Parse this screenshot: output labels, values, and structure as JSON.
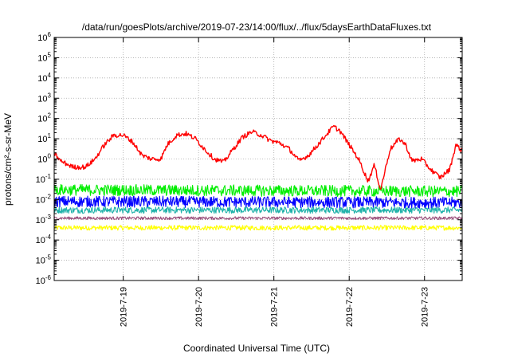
{
  "chart_data": {
    "type": "line",
    "title": "/data/run/goesPlots/archive/2019-07-23/14:00/flux/../flux/5daysEarthDataFluxes.txt",
    "xlabel": "Coordinated Universal Time (UTC)",
    "ylabel": "protons/cm²-s-sr-MeV",
    "yscale": "log",
    "ylim": [
      1e-06,
      1000000.0
    ],
    "y_tick_labels": [
      {
        "base": "10",
        "exp": "-6"
      },
      {
        "base": "10",
        "exp": "-5"
      },
      {
        "base": "10",
        "exp": "-4"
      },
      {
        "base": "10",
        "exp": "-3"
      },
      {
        "base": "10",
        "exp": "-2"
      },
      {
        "base": "10",
        "exp": "-1"
      },
      {
        "base": "10",
        "exp": "0"
      },
      {
        "base": "10",
        "exp": "1"
      },
      {
        "base": "10",
        "exp": "2"
      },
      {
        "base": "10",
        "exp": "3"
      },
      {
        "base": "10",
        "exp": "4"
      },
      {
        "base": "10",
        "exp": "5"
      },
      {
        "base": "10",
        "exp": "6"
      }
    ],
    "xlim": [
      "2019-07-18 02:00",
      "2019-07-23 12:00"
    ],
    "x_tick_labels": [
      "2019-7-19",
      "2019-7-20",
      "2019-7-21",
      "2019-7-22",
      "2019-7-23"
    ],
    "x_ticks": [
      "2019-07-19 00:00",
      "2019-07-20 00:00",
      "2019-07-21 00:00",
      "2019-07-22 00:00",
      "2019-07-23 00:00"
    ],
    "grid": true,
    "series": [
      {
        "color": "#ff0000",
        "x": [
          "2019-07-18 02:00",
          "2019-07-18 04:00",
          "2019-07-18 08:00",
          "2019-07-18 12:00",
          "2019-07-18 15:00",
          "2019-07-18 18:00",
          "2019-07-18 21:00",
          "2019-07-19 00:00",
          "2019-07-19 03:00",
          "2019-07-19 06:00",
          "2019-07-19 09:00",
          "2019-07-19 12:00",
          "2019-07-19 14:00",
          "2019-07-19 17:00",
          "2019-07-19 20:00",
          "2019-07-19 23:00",
          "2019-07-20 02:00",
          "2019-07-20 05:00",
          "2019-07-20 08:00",
          "2019-07-20 11:00",
          "2019-07-20 14:00",
          "2019-07-20 17:00",
          "2019-07-20 20:00",
          "2019-07-20 23:00",
          "2019-07-21 02:00",
          "2019-07-21 05:00",
          "2019-07-21 08:00",
          "2019-07-21 11:00",
          "2019-07-21 14:00",
          "2019-07-21 17:00",
          "2019-07-21 19:00",
          "2019-07-21 21:00",
          "2019-07-22 00:00",
          "2019-07-22 03:00",
          "2019-07-22 06:00",
          "2019-07-22 08:00",
          "2019-07-22 10:00",
          "2019-07-22 13:00",
          "2019-07-22 16:00",
          "2019-07-22 18:00",
          "2019-07-22 20:00",
          "2019-07-22 23:00",
          "2019-07-23 02:00",
          "2019-07-23 05:00",
          "2019-07-23 08:00",
          "2019-07-23 10:00",
          "2019-07-23 12:00"
        ],
        "values": [
          2,
          0.8,
          0.4,
          0.4,
          1,
          5,
          15,
          15,
          7,
          1.5,
          1.0,
          1.0,
          5,
          15,
          18,
          10,
          3,
          1,
          0.7,
          3,
          12,
          22,
          15,
          8,
          6,
          3,
          0.8,
          1.5,
          5,
          18,
          40,
          25,
          5,
          1,
          0.08,
          0.5,
          0.03,
          3,
          10,
          5,
          0.8,
          1,
          0.3,
          0.12,
          0.3,
          5,
          2.5
        ]
      },
      {
        "color": "#00ee00",
        "x": [
          "2019-07-18 02:00",
          "2019-07-23 12:00"
        ],
        "values": [
          0.03,
          0.025
        ]
      },
      {
        "color": "#0000ff",
        "x": [
          "2019-07-18 02:00",
          "2019-07-23 12:00"
        ],
        "values": [
          0.008,
          0.007
        ]
      },
      {
        "color": "#20b2aa",
        "x": [
          "2019-07-18 02:00",
          "2019-07-23 12:00"
        ],
        "values": [
          0.003,
          0.003
        ]
      },
      {
        "color": "#994d7a",
        "x": [
          "2019-07-18 02:00",
          "2019-07-23 12:00"
        ],
        "values": [
          0.0012,
          0.0012
        ]
      },
      {
        "color": "#ffff00",
        "x": [
          "2019-07-18 02:00",
          "2019-07-23 12:00"
        ],
        "values": [
          0.0004,
          0.0004
        ]
      }
    ]
  }
}
